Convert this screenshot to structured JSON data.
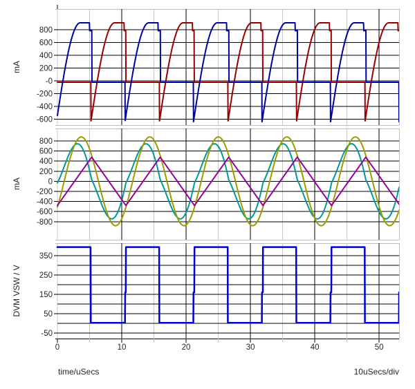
{
  "chart_data": {
    "type": "line",
    "title": "",
    "x": {
      "label": "time/uSecs",
      "scale_note": "10uSecs/div",
      "min": 0,
      "max": 53.1,
      "major_ticks": [
        0,
        10,
        20,
        30,
        40,
        50
      ],
      "major_tick_labels": [
        "0",
        "10",
        "20",
        "30",
        "40",
        "50"
      ],
      "minor_ticks": [
        0,
        5,
        15,
        25,
        35,
        45
      ],
      "grid": "on"
    },
    "colors": {
      "grid_major": "#000000",
      "grid_minor": "#c8c8c8",
      "panel_border": "#bdbdbd",
      "axis": "#000000",
      "text": "#262626"
    },
    "panels": [
      {
        "id": "diode-currents",
        "ylabel": "mA",
        "y_min": -692,
        "y_max": 1124,
        "grid_values": [
          800,
          600,
          400,
          200,
          0,
          -200,
          -400,
          -600
        ],
        "tick_values": [
          800,
          600,
          400,
          200,
          0,
          -200,
          -400,
          -600
        ],
        "tick_labels": [
          "800",
          "600",
          "400",
          "200",
          "-0",
          "-200",
          "-400",
          "-600"
        ],
        "series": [
          {
            "name": "diode-current-red",
            "color": "#980000",
            "stroke_width": 2,
            "type": "diode",
            "T": 10.65,
            "t0": 5.2,
            "flat": -22,
            "spike": -640,
            "peak": 908,
            "rise": 3.7,
            "plateau_end": 5.15,
            "ledge": 785,
            "drop": 5.42
          },
          {
            "name": "diode-current-blue",
            "color": "#0000A0",
            "stroke_width": 2,
            "type": "diode",
            "T": 10.65,
            "t0": -0.15,
            "flat": -22,
            "spike": -640,
            "peak": 908,
            "rise": 3.7,
            "plateau_end": 5.15,
            "ledge": 785,
            "drop": 5.5
          }
        ]
      },
      {
        "id": "resonant-currents",
        "ylabel": "mA",
        "y_min": -1159,
        "y_max": 1047,
        "grid_values": [
          800,
          600,
          400,
          200,
          0,
          -200,
          -400,
          -600,
          -800
        ],
        "tick_values": [
          800,
          600,
          400,
          200,
          0,
          -200,
          -400,
          -600,
          -800
        ],
        "tick_labels": [
          "800",
          "600",
          "400",
          "200",
          "0",
          "-200",
          "-400",
          "-600",
          "-800"
        ],
        "series": [
          {
            "name": "secondary-current-teal",
            "color": "#009898",
            "stroke_width": 2,
            "type": "sine-minus-triangle",
            "T": 10.65,
            "sine": {
              "type": "sine",
              "T": 10.65,
              "amp": 880,
              "t0": 1.05
            },
            "tri": {
              "type": "triangle",
              "T": 10.65,
              "amp": 480,
              "t_min": 0
            }
          },
          {
            "name": "resonant-current-olive",
            "color": "#9C9C00",
            "stroke_width": 2,
            "type": "sine",
            "T": 10.65,
            "amp": 880,
            "t0": 1.05
          },
          {
            "name": "magnetizing-current-purple",
            "color": "#98009C",
            "stroke_width": 2,
            "type": "triangle",
            "T": 10.65,
            "amp": 480,
            "t_min": 0
          }
        ]
      },
      {
        "id": "switch-node-voltage",
        "ylabel": "DVM VSW / V",
        "y_min": -79,
        "y_max": 414,
        "grid_values": [
          350,
          300,
          250,
          200,
          150,
          100,
          50,
          0,
          -50
        ],
        "tick_values": [
          350,
          250,
          150,
          50,
          -50
        ],
        "tick_labels": [
          "350",
          "250",
          "150",
          "50",
          "-50"
        ],
        "series": [
          {
            "name": "switch-voltage-square",
            "color": "#0000D0",
            "stroke_width": 2.5,
            "type": "square",
            "T": 10.65,
            "t0": -0.15,
            "high": 394,
            "low": 2,
            "glitch_v": 160,
            "glitch_dur": 0.13
          }
        ]
      }
    ]
  }
}
